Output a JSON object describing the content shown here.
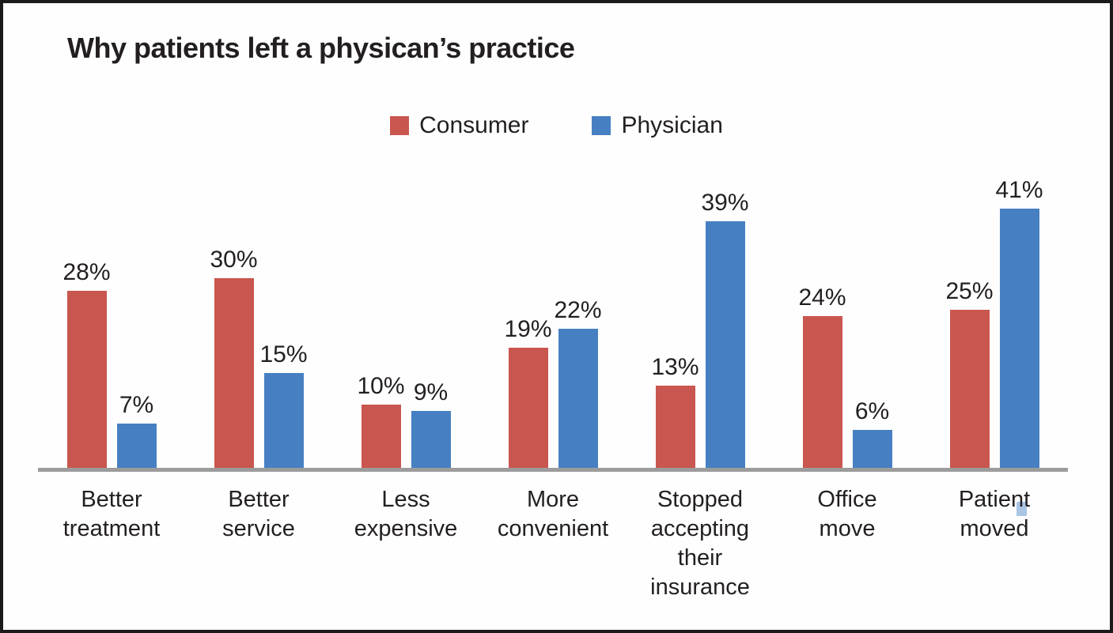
{
  "title": "Why patients left a physican’s practice",
  "legend": {
    "items": [
      {
        "label": "Consumer",
        "color": "#C9564F"
      },
      {
        "label": "Physician",
        "color": "#4680C2"
      }
    ]
  },
  "chart_data": {
    "type": "bar",
    "title": "Why patients left a physican’s practice",
    "categories": [
      "Better treatment",
      "Better service",
      "Less expensive",
      "More convenient",
      "Stopped accepting their insurance",
      "Office move",
      "Patient moved"
    ],
    "category_label_lines": [
      [
        "Better",
        "treatment"
      ],
      [
        "Better",
        "service"
      ],
      [
        "Less",
        "expensive"
      ],
      [
        "More",
        "convenient"
      ],
      [
        "Stopped",
        "accepting",
        "their",
        "insurance"
      ],
      [
        "Office",
        "move"
      ],
      [
        "Patient",
        "moved"
      ]
    ],
    "series": [
      {
        "name": "Consumer",
        "color": "#C9564F",
        "values": [
          28,
          30,
          10,
          19,
          13,
          24,
          25
        ]
      },
      {
        "name": "Physician",
        "color": "#4680C2",
        "values": [
          7,
          15,
          9,
          22,
          39,
          6,
          41
        ]
      }
    ],
    "value_suffix": "%",
    "data_labels": [
      "28%",
      "7%",
      "30%",
      "15%",
      "10%",
      "9%",
      "19%",
      "22%",
      "13%",
      "39%",
      "24%",
      "6%",
      "25%",
      "41%"
    ],
    "ylim": [
      0,
      45
    ],
    "grid": false,
    "axes_shown": "x-baseline-only",
    "legend_position": "top-center"
  },
  "colors": {
    "consumer_red": "#C9564F",
    "physician_blue": "#4680C2",
    "axis_line": "#9C9C9C",
    "text": "#231F20",
    "frame_border": "#1A1A1A",
    "background": "#FEFEFE",
    "artifact_blue": "#A9C5E4"
  }
}
